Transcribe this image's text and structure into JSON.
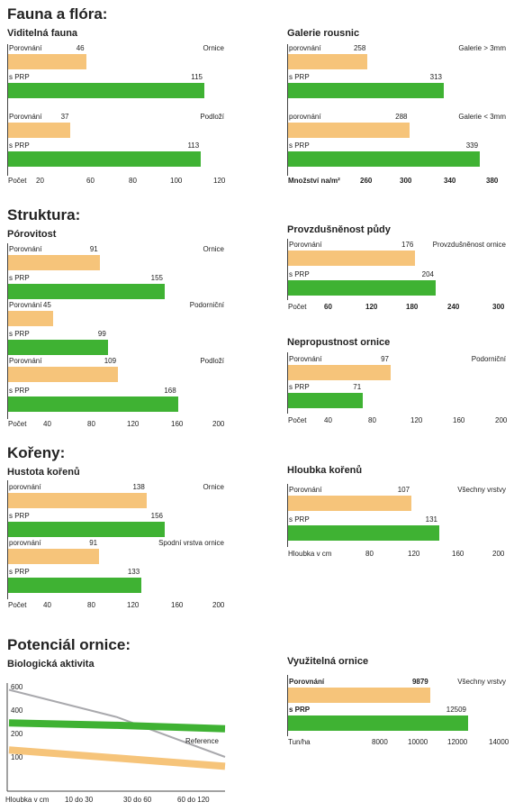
{
  "sections": {
    "fauna": "Fauna a flóra:",
    "struktura": "Struktura:",
    "koreny": "Kořeny:",
    "potencial": "Potenciál ornice:"
  },
  "colors": {
    "comparison": "#f6c47a",
    "prp": "#3fb233",
    "line_gray": "#a9a9ad"
  },
  "charts": [
    {
      "id": "viditelna-fauna",
      "type": "bar",
      "title": "Viditelná fauna",
      "axis_label": "Počet",
      "ticks": [
        "20",
        "60",
        "80",
        "100",
        "120"
      ],
      "groups": [
        {
          "label": "Ornice",
          "bars": [
            {
              "name": "Porovnání",
              "value": 46
            },
            {
              "name": "s PRP",
              "value": 115
            }
          ]
        },
        {
          "label": "Podloží",
          "bars": [
            {
              "name": "Porovnání",
              "value": 37
            },
            {
              "name": "s PRP",
              "value": 113
            }
          ]
        }
      ]
    },
    {
      "id": "galerie-rousnic",
      "type": "bar",
      "title": "Galerie rousnic",
      "axis_label": "Množství na/m²",
      "ticks": [
        "260",
        "300",
        "340",
        "380"
      ],
      "groups": [
        {
          "label": "Galerie > 3mm",
          "bars": [
            {
              "name": "porovnání",
              "value": 258
            },
            {
              "name": "s PRP",
              "value": 313
            }
          ]
        },
        {
          "label": "Galerie < 3mm",
          "bars": [
            {
              "name": "porovnání",
              "value": 288
            },
            {
              "name": "s PRP",
              "value": 339
            }
          ]
        }
      ]
    },
    {
      "id": "porovitost",
      "type": "bar",
      "title": "Pórovitost",
      "axis_label": "Počet",
      "ticks": [
        "40",
        "80",
        "120",
        "160",
        "200"
      ],
      "groups": [
        {
          "label": "Ornice",
          "bars": [
            {
              "name": "Porovnání",
              "value": 91
            },
            {
              "name": "s PRP",
              "value": 155
            }
          ]
        },
        {
          "label": "Podorniční",
          "bars": [
            {
              "name": "Porovnání",
              "value": 45
            },
            {
              "name": "s PRP",
              "value": 99
            }
          ]
        },
        {
          "label": "Podloží",
          "bars": [
            {
              "name": "Porovnání",
              "value": 109
            },
            {
              "name": "s PRP",
              "value": 168
            }
          ]
        }
      ]
    },
    {
      "id": "provzdusnenost",
      "type": "bar",
      "title": "Provzdušněnost půdy",
      "axis_label": "Počet",
      "ticks": [
        "60",
        "120",
        "180",
        "240",
        "300"
      ],
      "groups": [
        {
          "label": "Provzdušněnost ornice",
          "bars": [
            {
              "name": "Porovnání",
              "value": 176
            },
            {
              "name": "s PRP",
              "value": 204
            }
          ]
        }
      ]
    },
    {
      "id": "nepropustnost",
      "type": "bar",
      "title": "Nepropustnost ornice",
      "axis_label": "Počet",
      "ticks": [
        "40",
        "80",
        "120",
        "160",
        "200"
      ],
      "groups": [
        {
          "label": "Podorniční",
          "bars": [
            {
              "name": "Porovnání",
              "value": 97
            },
            {
              "name": "s PRP",
              "value": 71
            }
          ]
        }
      ]
    },
    {
      "id": "hustota-korenu",
      "type": "bar",
      "title": "Hustota kořenů",
      "axis_label": "Počet",
      "ticks": [
        "40",
        "80",
        "120",
        "160",
        "200"
      ],
      "groups": [
        {
          "label": "Ornice",
          "bars": [
            {
              "name": "porovnání",
              "value": 138
            },
            {
              "name": "s PRP",
              "value": 156
            }
          ]
        },
        {
          "label": "Spodní vrstva ornice",
          "bars": [
            {
              "name": "porovnání",
              "value": 91
            },
            {
              "name": "s PRP",
              "value": 133
            }
          ]
        }
      ]
    },
    {
      "id": "hloubka-korenu",
      "type": "bar",
      "title": "Hloubka kořenů",
      "axis_label": "Hloubka v cm",
      "ticks": [
        "80",
        "120",
        "160",
        "200"
      ],
      "groups": [
        {
          "label": "Všechny vrstvy",
          "bars": [
            {
              "name": "Porovnání",
              "value": 107
            },
            {
              "name": "s PRP",
              "value": 131
            }
          ]
        }
      ]
    },
    {
      "id": "vyuzitelna-ornice",
      "type": "bar",
      "title": "Využitelná ornice",
      "axis_label": "Tun/ha",
      "ticks": [
        "8000",
        "10000",
        "12000",
        "14000"
      ],
      "groups": [
        {
          "label": "Všechny vrstvy",
          "bars": [
            {
              "name": "Porovnání",
              "value": 9879
            },
            {
              "name": "s PRP",
              "value": 12509
            }
          ]
        }
      ]
    }
  ],
  "chart_data": {
    "type": "line",
    "title": "Biologická aktivita",
    "xlabel": "Hloubka v cm",
    "categories": [
      "10 do 30",
      "30 do 60",
      "60 do 120"
    ],
    "y_ticks": [
      "600",
      "400",
      "200",
      "100"
    ],
    "series": [
      {
        "name": "Reference",
        "color": "#a9a9ad",
        "values": [
          580,
          340,
          100
        ]
      },
      {
        "name": "",
        "color": "#3fb233",
        "values": [
          290,
          270,
          240
        ]
      },
      {
        "name": "",
        "color": "#f6c47a",
        "values": [
          130,
          95,
          60
        ]
      }
    ]
  }
}
